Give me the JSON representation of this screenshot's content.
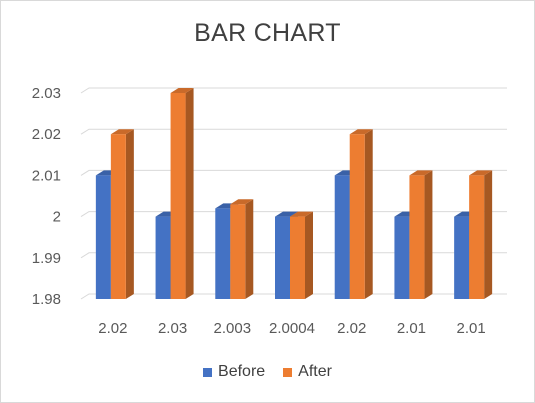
{
  "chart_data": {
    "type": "bar",
    "title": "BAR CHART",
    "xlabel": "",
    "ylabel": "",
    "categories": [
      "2.02",
      "2.03",
      "2.003",
      "2.0004",
      "2.02",
      "2.01",
      "2.01"
    ],
    "series": [
      {
        "name": "Before",
        "color": "#4472C4",
        "values": [
          2.01,
          2.0,
          2.002,
          2.0,
          2.01,
          2.0,
          2.0
        ]
      },
      {
        "name": "After",
        "color": "#ED7D31",
        "values": [
          2.02,
          2.03,
          2.003,
          2.0,
          2.02,
          2.01,
          2.01
        ]
      }
    ],
    "ylim": [
      1.98,
      2.03
    ],
    "yticks": [
      "1.98",
      "1.99",
      "2",
      "2.01",
      "2.02",
      "2.03"
    ],
    "grid": true,
    "legend": "bottom",
    "style": "3d-clustered-column"
  }
}
